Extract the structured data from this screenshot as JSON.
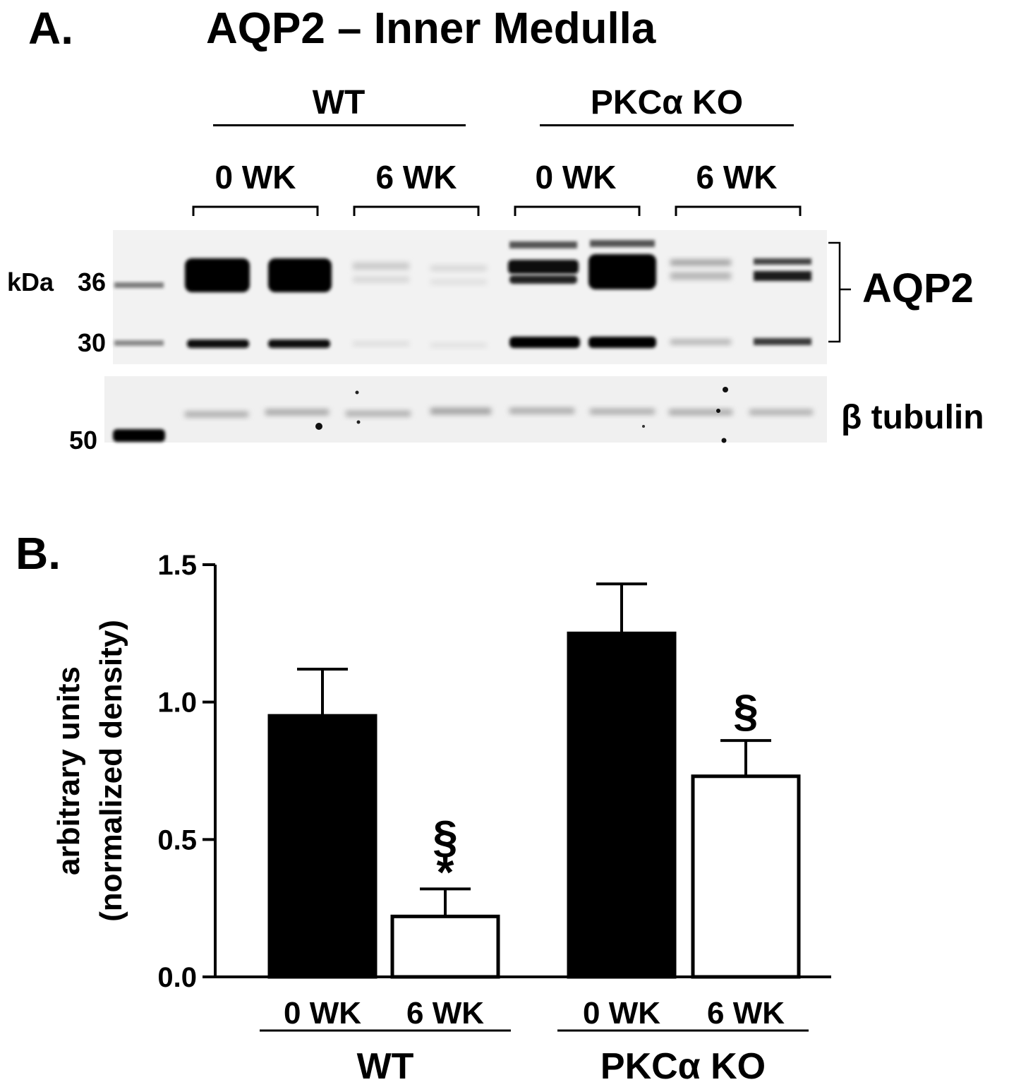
{
  "panel_a": {
    "letter": "A.",
    "title": "AQP2 – Inner Medulla",
    "groups": [
      "WT",
      "PKCα KO"
    ],
    "lanes": [
      "0 WK",
      "6 WK",
      "0 WK",
      "6 WK"
    ],
    "mw_unit": "kDa",
    "mw_markers": [
      "36",
      "30",
      "50"
    ],
    "blot_label": "AQP2",
    "loading_label": "β tubulin"
  },
  "panel_b": {
    "letter": "B."
  },
  "chart_data": {
    "type": "bar",
    "ylabel_line1": "arbitrary units",
    "ylabel_line2": "(normalized density)",
    "ylim": [
      0,
      1.5
    ],
    "yticks": [
      "0.0",
      "0.5",
      "1.0",
      "1.5"
    ],
    "groups": [
      "WT",
      "PKCα KO"
    ],
    "categories": [
      "0 WK",
      "6 WK",
      "0 WK",
      "6 WK"
    ],
    "values": [
      0.95,
      0.22,
      1.25,
      0.73
    ],
    "errors": [
      0.17,
      0.1,
      0.18,
      0.13
    ],
    "fills": [
      "#000000",
      "#ffffff",
      "#000000",
      "#ffffff"
    ],
    "annotations": [
      {
        "bar": 1,
        "text": "§*"
      },
      {
        "bar": 3,
        "text": "§"
      }
    ]
  }
}
